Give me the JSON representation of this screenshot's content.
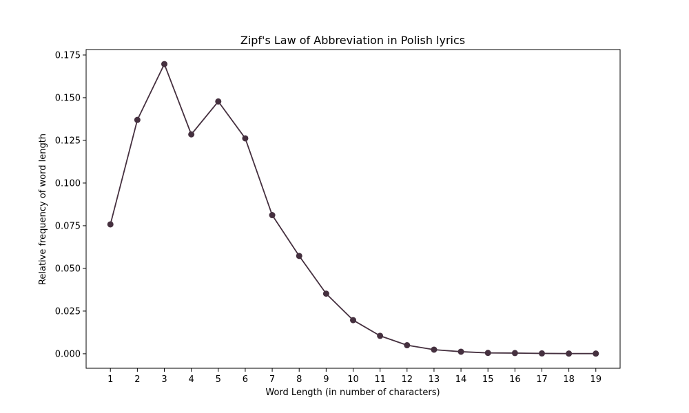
{
  "chart_data": {
    "type": "line",
    "title": "Zipf's Law of Abbreviation in Polish lyrics",
    "xlabel": "Word Length (in number of characters)",
    "ylabel": "Relative frequency of word length",
    "x": [
      1,
      2,
      3,
      4,
      5,
      6,
      7,
      8,
      9,
      10,
      11,
      12,
      13,
      14,
      15,
      16,
      17,
      18,
      19
    ],
    "series": [
      {
        "values": [
          0.0758,
          0.137,
          0.1697,
          0.1285,
          0.1478,
          0.1262,
          0.0812,
          0.0573,
          0.0352,
          0.0197,
          0.0105,
          0.005,
          0.0024,
          0.0012,
          0.0005,
          0.0004,
          0.0002,
          0.0001,
          0.0001
        ],
        "color": "#45303f",
        "marker": "circle"
      }
    ],
    "xlim": [
      0.1,
      19.9
    ],
    "ylim": [
      -0.0085,
      0.1782
    ],
    "yticks": [
      "0.000",
      "0.025",
      "0.050",
      "0.075",
      "0.100",
      "0.125",
      "0.150",
      "0.175"
    ],
    "xticks": [
      "1",
      "2",
      "3",
      "4",
      "5",
      "6",
      "7",
      "8",
      "9",
      "10",
      "11",
      "12",
      "13",
      "14",
      "15",
      "16",
      "17",
      "18",
      "19"
    ],
    "grid": false,
    "legend": "none"
  }
}
